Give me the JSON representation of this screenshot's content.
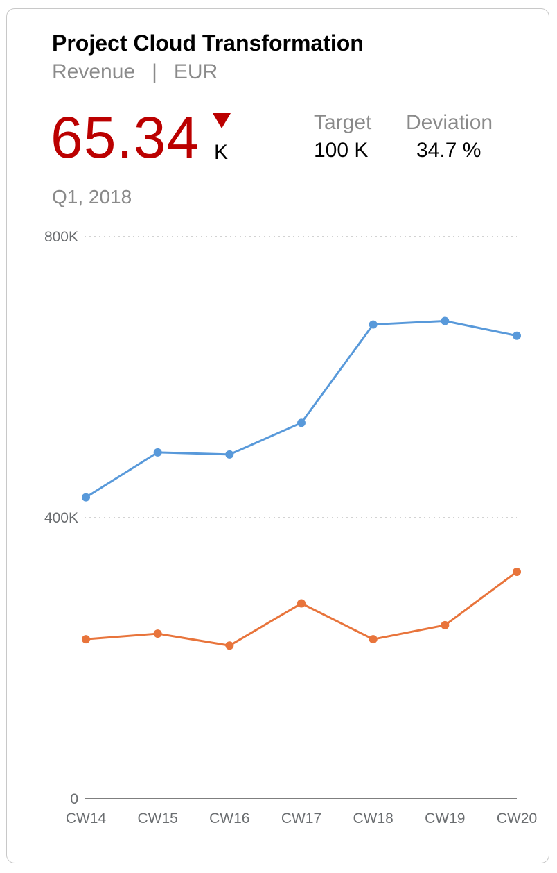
{
  "header": {
    "title": "Project Cloud Transformation",
    "measure": "Revenue",
    "separator": "|",
    "currency": "EUR"
  },
  "kpi": {
    "value": "65.34",
    "unit": "K",
    "trend": "down",
    "trend_icon": "down-triangle-icon",
    "color": "#bb0000"
  },
  "target": {
    "label": "Target",
    "value": "100  K"
  },
  "deviation": {
    "label": "Deviation",
    "value": "34.7  %"
  },
  "period": "Q1, 2018",
  "chart_data": {
    "type": "line",
    "categories": [
      "CW14",
      "CW15",
      "CW16",
      "CW17",
      "CW18",
      "CW19",
      "CW20"
    ],
    "series": [
      {
        "color": "#5899da",
        "values": [
          429,
          493,
          490,
          535,
          675,
          680,
          659
        ]
      },
      {
        "color": "#e8743b",
        "values": [
          227,
          235,
          218,
          278,
          227,
          247,
          323
        ]
      }
    ],
    "ylim": [
      0,
      800
    ],
    "yticks": [
      {
        "value": 0,
        "label": "0"
      },
      {
        "value": 400,
        "label": "400K"
      },
      {
        "value": 800,
        "label": "800K"
      }
    ],
    "grid": true,
    "xlabel": "",
    "ylabel": ""
  }
}
